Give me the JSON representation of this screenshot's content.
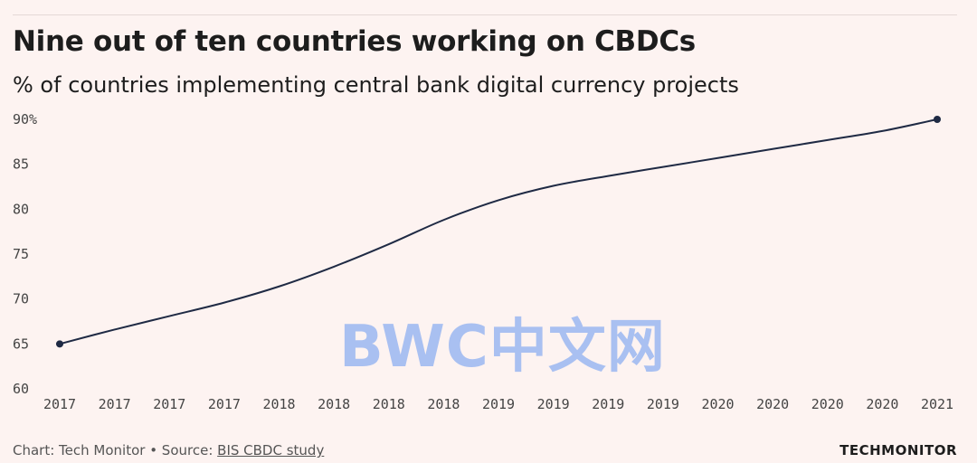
{
  "title": "Nine out of ten countries working on CBDCs",
  "subtitle": "% of countries implementing central bank digital currency projects",
  "footer": {
    "credit_prefix": "Chart: Tech Monitor • Source: ",
    "source_link": "BIS CBDC study",
    "brand": "TECHMONITOR"
  },
  "watermark": "BWC中文网",
  "colors": {
    "background": "#fdf3f1",
    "line": "#1f2a44",
    "text": "#1d1d1d"
  },
  "chart_data": {
    "type": "line",
    "title": "Nine out of ten countries working on CBDCs",
    "subtitle": "% of countries implementing central bank digital currency projects",
    "xlabel": "",
    "ylabel": "",
    "categories": [
      "2017",
      "2017",
      "2017",
      "2017",
      "2018",
      "2018",
      "2018",
      "2018",
      "2019",
      "2019",
      "2019",
      "2019",
      "2020",
      "2020",
      "2020",
      "2020",
      "2021"
    ],
    "series": [
      {
        "values": [
          65,
          66.6,
          68.1,
          69.6,
          71.4,
          73.6,
          76.1,
          78.8,
          81.0,
          82.6,
          83.7,
          84.7,
          85.7,
          86.7,
          87.7,
          88.7,
          90
        ]
      }
    ],
    "ylim": [
      60,
      90
    ],
    "yticks": [
      60,
      65,
      70,
      75,
      80,
      85,
      90
    ],
    "ytick_labels": [
      "60",
      "65",
      "70",
      "75",
      "80",
      "85",
      "90%"
    ],
    "grid": false
  }
}
